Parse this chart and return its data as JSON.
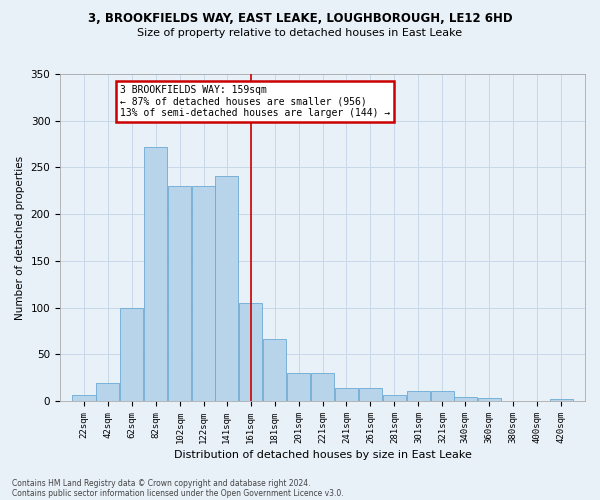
{
  "title_line1": "3, BROOKFIELDS WAY, EAST LEAKE, LOUGHBOROUGH, LE12 6HD",
  "title_line2": "Size of property relative to detached houses in East Leake",
  "xlabel": "Distribution of detached houses by size in East Leake",
  "ylabel": "Number of detached properties",
  "bar_labels": [
    "22sqm",
    "42sqm",
    "62sqm",
    "82sqm",
    "102sqm",
    "122sqm",
    "141sqm",
    "161sqm",
    "181sqm",
    "201sqm",
    "221sqm",
    "241sqm",
    "261sqm",
    "281sqm",
    "301sqm",
    "321sqm",
    "340sqm",
    "360sqm",
    "380sqm",
    "400sqm",
    "420sqm"
  ],
  "bar_heights": [
    7,
    19,
    100,
    272,
    230,
    230,
    241,
    105,
    66,
    30,
    30,
    14,
    14,
    7,
    11,
    11,
    4,
    3,
    0,
    0,
    2
  ],
  "bar_color": "#b8d4ea",
  "bar_edge_color": "#6aaad4",
  "annotation_text_line1": "3 BROOKFIELDS WAY: 159sqm",
  "annotation_text_line2": "← 87% of detached houses are smaller (956)",
  "annotation_text_line3": "13% of semi-detached houses are larger (144) →",
  "annotation_box_color": "#ffffff",
  "annotation_box_edge_color": "#cc0000",
  "vline_color": "#cc0000",
  "grid_color": "#c8d8e8",
  "background_color": "#e8f0f8",
  "footnote1": "Contains HM Land Registry data © Crown copyright and database right 2024.",
  "footnote2": "Contains public sector information licensed under the Open Government Licence v3.0.",
  "ylim": [
    0,
    350
  ],
  "yticks": [
    0,
    50,
    100,
    150,
    200,
    250,
    300,
    350
  ],
  "bin_width": 20,
  "vline_x_label": "161sqm"
}
